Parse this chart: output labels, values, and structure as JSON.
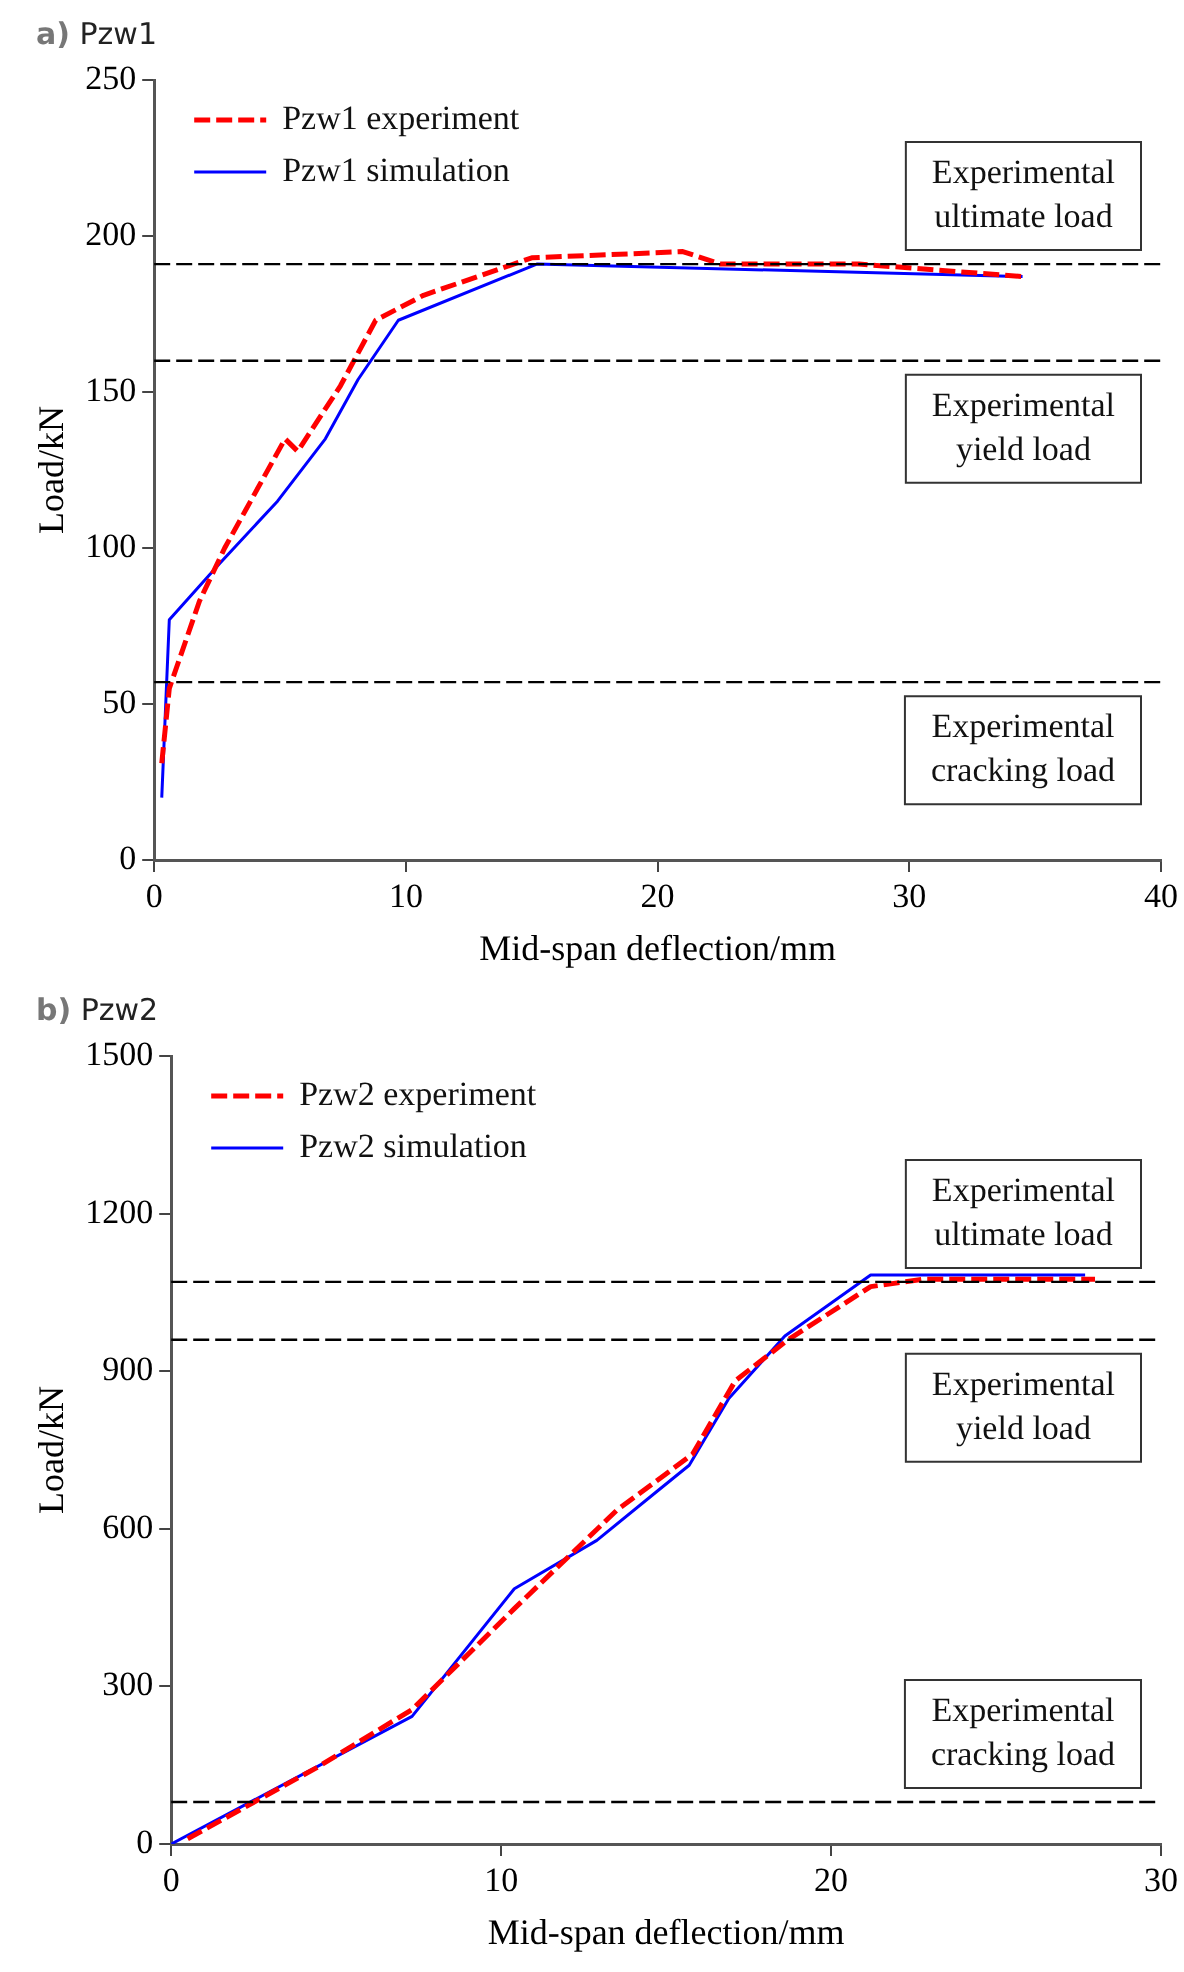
{
  "chart_data": [
    {
      "type": "line",
      "title": "a) Pzw1",
      "xlabel": "Mid-span deflection/mm",
      "ylabel": "Load/kN",
      "xlim": [
        0,
        40
      ],
      "xticks": [
        0,
        10,
        20,
        30,
        40
      ],
      "ylim": [
        0,
        250
      ],
      "yticks": [
        0,
        50,
        100,
        150,
        200,
        250
      ],
      "grid": false,
      "legend": "top left",
      "marker": "none",
      "series": [
        {
          "name": "Pzw1 experiment",
          "color": "#ff0000",
          "line_style": "dashed",
          "x": [
            0.3,
            0.6,
            1.8,
            2.8,
            5.2,
            5.7,
            7.4,
            8.8,
            10.7,
            15,
            21,
            22.5,
            28,
            34.5
          ],
          "values": [
            31,
            55,
            83,
            100,
            135,
            131,
            152,
            173,
            181,
            193,
            195,
            191,
            191,
            187
          ]
        },
        {
          "name": "Pzw1 simulation",
          "color": "#0000ff",
          "line_style": "solid",
          "x": [
            0.3,
            0.6,
            2.6,
            4.9,
            6.8,
            8.1,
            9.7,
            15.2,
            34.5
          ],
          "values": [
            20,
            77,
            95,
            115,
            135,
            154,
            173,
            191,
            187
          ]
        }
      ],
      "ref_lines": [
        {
          "axis": "y",
          "value": 191,
          "label": "Experimental\nultimate load",
          "color": "#000000",
          "line_style": "dashed"
        },
        {
          "axis": "y",
          "value": 160,
          "label": "Experimental\nyield load",
          "color": "#000000",
          "line_style": "dashed"
        },
        {
          "axis": "y",
          "value": 57,
          "label": "Experimental\ncracking load",
          "color": "#000000",
          "line_style": "dashed"
        }
      ]
    },
    {
      "type": "line",
      "title": "b) Pzw2",
      "xlabel": "Mid-span deflection/mm",
      "ylabel": "Load/kN",
      "xlim": [
        0,
        30
      ],
      "xticks": [
        0,
        10,
        20,
        30
      ],
      "ylim": [
        0,
        1500
      ],
      "yticks": [
        0,
        300,
        600,
        900,
        1200,
        1500
      ],
      "grid": false,
      "legend": "top left",
      "marker": "none",
      "series": [
        {
          "name": "Pzw2 experiment",
          "color": "#ff0000",
          "line_style": "dashed",
          "x": [
            0.5,
            4.4,
            7.3,
            10.4,
            13.5,
            15.8,
            17.1,
            18.7,
            21.2,
            22.8,
            28
          ],
          "values": [
            10,
            145,
            256,
            448,
            635,
            742,
            882,
            960,
            1061,
            1075,
            1075
          ]
        },
        {
          "name": "Pzw2 simulation",
          "color": "#0000ff",
          "line_style": "solid",
          "x": [
            0,
            7.3,
            10.4,
            12.9,
            14.7,
            15.7,
            16.9,
            18.6,
            21.2,
            27.7
          ],
          "values": [
            0,
            243,
            486,
            578,
            670,
            721,
            848,
            967,
            1083,
            1083
          ]
        }
      ],
      "ref_lines": [
        {
          "axis": "y",
          "value": 1070,
          "label": "Experimental\nultimate load",
          "color": "#000000",
          "line_style": "dashed"
        },
        {
          "axis": "y",
          "value": 960,
          "label": "Experimental\nyield load",
          "color": "#000000",
          "line_style": "dashed"
        },
        {
          "axis": "y",
          "value": 80,
          "label": "Experimental\ncracking load",
          "color": "#000000",
          "line_style": "dashed"
        }
      ]
    }
  ]
}
